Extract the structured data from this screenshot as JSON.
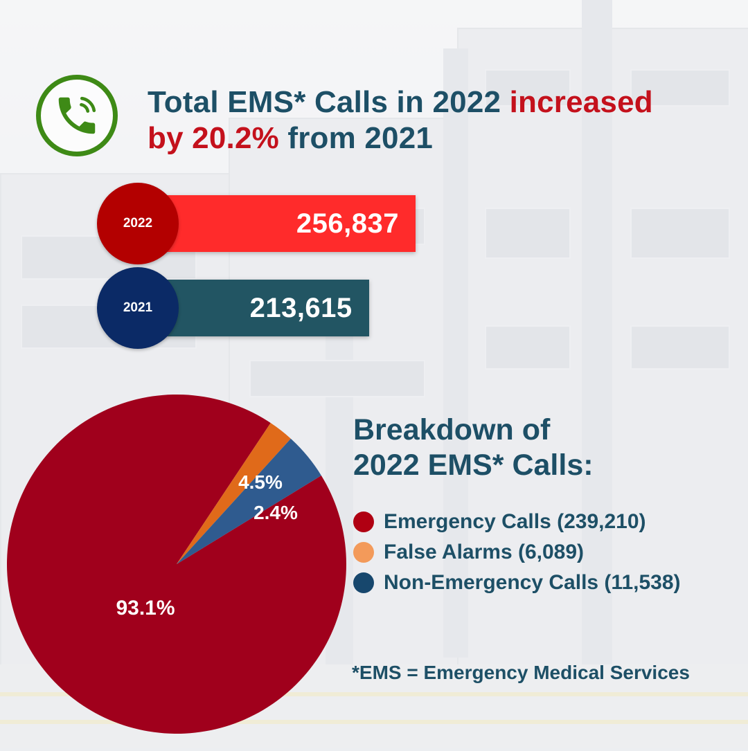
{
  "header": {
    "title_part1": "Total EMS* Calls in 2022 ",
    "title_highlight1": "increased",
    "title_highlight2": "by 20.2%",
    "title_part2": " from 2021",
    "icon": "phone-icon"
  },
  "colors": {
    "title": "#1d4f66",
    "highlight": "#c4111c",
    "icon_green": "#3e8a16",
    "bar_2022": "#ff2b2b",
    "circle_2022": "#b30000",
    "bar_2021": "#225563",
    "circle_2021": "#0b2a66",
    "slice_emergency": "#a0001c",
    "slice_false_alarms": "#e06a1a",
    "slice_non_emergency": "#2f5b8f",
    "dot_emergency": "#b00012",
    "dot_false_alarms": "#f39a5a",
    "dot_non_emergency": "#17476d"
  },
  "chart_data": [
    {
      "type": "bar",
      "orientation": "horizontal",
      "categories": [
        "2022",
        "2021"
      ],
      "values": [
        256837,
        213615
      ],
      "value_labels": [
        "256,837",
        "213,615"
      ]
    },
    {
      "type": "pie",
      "title": "Breakdown of 2022 EMS* Calls:",
      "title_line1": "Breakdown of",
      "title_line2": "2022 EMS* Calls:",
      "slices": [
        {
          "name": "Emergency Calls",
          "count": 239210,
          "count_label": "239,210",
          "percent": 93.1,
          "percent_label": "93.1%"
        },
        {
          "name": "False Alarms",
          "count": 6089,
          "count_label": "6,089",
          "percent": 2.4,
          "percent_label": "2.4%"
        },
        {
          "name": "Non-Emergency Calls",
          "count": 11538,
          "count_label": "11,538",
          "percent": 4.5,
          "percent_label": "4.5%"
        }
      ],
      "legend": [
        "Emergency Calls (239,210)",
        "False Alarms (6,089)",
        "Non-Emergency Calls (11,538)"
      ],
      "legend_placement": "right"
    }
  ],
  "footnote": "*EMS = Emergency Medical Services"
}
